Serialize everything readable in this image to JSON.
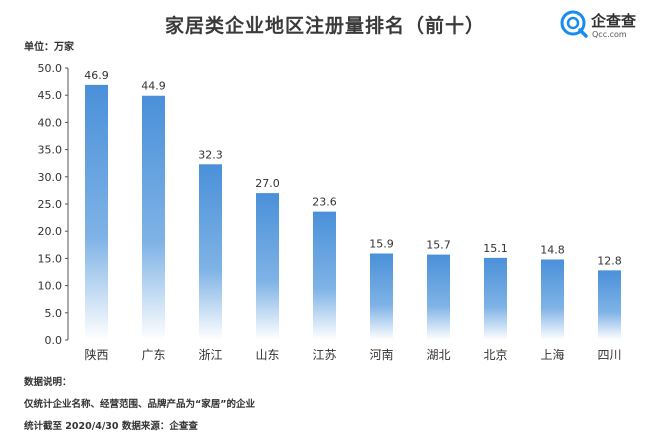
{
  "header": {
    "title": "家居类企业地区注册量排名（前十）",
    "unit": "单位：万家"
  },
  "logo": {
    "name": "企查查",
    "sub": "Qcc.com",
    "color": "#1a8cf0"
  },
  "chart_data": {
    "type": "bar",
    "categories": [
      "陕西",
      "广东",
      "浙江",
      "山东",
      "江苏",
      "河南",
      "湖北",
      "北京",
      "上海",
      "四川"
    ],
    "values": [
      46.9,
      44.9,
      32.3,
      27.0,
      23.6,
      15.9,
      15.7,
      15.1,
      14.8,
      12.8
    ],
    "value_labels": [
      "46.9",
      "44.9",
      "32.3",
      "27.0",
      "23.6",
      "15.9",
      "15.7",
      "15.1",
      "14.8",
      "12.8"
    ],
    "ylim": [
      0,
      50
    ],
    "yticks": [
      "0.0",
      "5.0",
      "10.0",
      "15.0",
      "20.0",
      "25.0",
      "30.0",
      "35.0",
      "40.0",
      "45.0",
      "50.0"
    ],
    "grid": false,
    "bar_color": "#4a90d9"
  },
  "notes": {
    "heading": "数据说明：",
    "line1": "仅统计企业名称、经营范围、品牌产品为“家居”的企业",
    "line2": "统计截至 2020/4/30    数据来源：企查查"
  }
}
